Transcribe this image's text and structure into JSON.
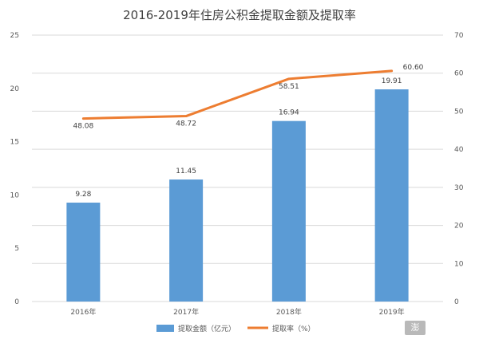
{
  "chart_data": {
    "type": "bar+line",
    "title": "2016-2019年住房公积金提取金额及提取率",
    "categories": [
      "2016年",
      "2017年",
      "2018年",
      "2019年"
    ],
    "series": [
      {
        "name": "提取金额（亿元）",
        "type": "bar",
        "axis": "left",
        "values": [
          9.28,
          11.45,
          16.94,
          19.91
        ],
        "color": "#5b9bd5"
      },
      {
        "name": "提取率（%）",
        "type": "line",
        "axis": "right",
        "values": [
          48.08,
          48.72,
          58.51,
          60.6
        ],
        "color": "#ed7d31"
      }
    ],
    "data_labels": {
      "bar": [
        "9.28",
        "11.45",
        "16.94",
        "19.91"
      ],
      "line": [
        "48.08",
        "48.72",
        "58.51",
        "60.60"
      ]
    },
    "y_left": {
      "min": 0,
      "max": 25,
      "ticks": [
        0,
        5,
        10,
        15,
        20,
        25
      ]
    },
    "y_right": {
      "min": 0,
      "max": 70,
      "ticks": [
        0,
        10,
        20,
        30,
        40,
        50,
        60,
        70
      ]
    },
    "grid": true,
    "legend_position": "bottom"
  },
  "watermark_text": "澎"
}
